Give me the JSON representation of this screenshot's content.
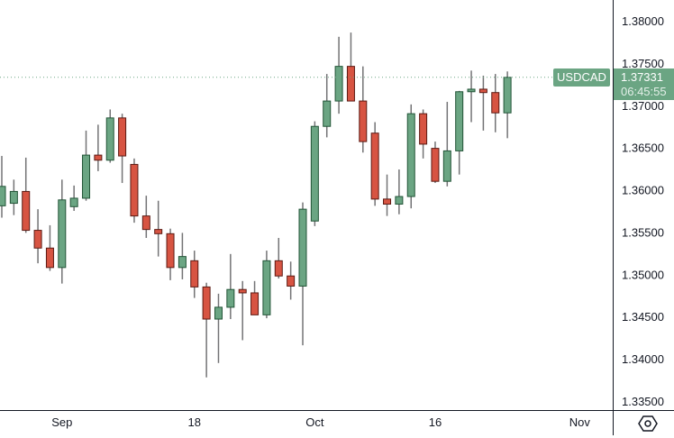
{
  "symbol": "USDCAD",
  "last_price": "1.37331",
  "countdown": "06:45:55",
  "colors": {
    "up_body": "#6ba583",
    "up_border": "#225437",
    "down_body": "#d75442",
    "down_border": "#5b1a13",
    "wick": "#737375",
    "price_line": "#6ba583"
  },
  "settings_icon": "settings-hexagon-icon",
  "chart_data": {
    "type": "candlestick",
    "ylim": [
      1.335,
      1.38
    ],
    "grid": false,
    "y_ticks": [
      "1.38000",
      "1.37500",
      "1.37000",
      "1.36500",
      "1.36000",
      "1.35500",
      "1.35000",
      "1.34500",
      "1.34000",
      "1.33500"
    ],
    "x_ticks": [
      {
        "label": "Sep",
        "date": "2023-09-01"
      },
      {
        "label": "18",
        "date": "2023-09-18"
      },
      {
        "label": "Oct",
        "date": "2023-10-02"
      },
      {
        "label": "16",
        "date": "2023-10-16"
      },
      {
        "label": "Nov",
        "date": "2023-11-01"
      }
    ],
    "start_date": "2023-08-25",
    "ohlc": [
      [
        1.3581,
        1.364,
        1.3567,
        1.3604
      ],
      [
        1.3584,
        1.3612,
        1.357,
        1.3598
      ],
      [
        1.3598,
        1.3638,
        1.3549,
        1.3552
      ],
      [
        1.3552,
        1.3577,
        1.3513,
        1.3531
      ],
      [
        1.3531,
        1.3558,
        1.3504,
        1.3508
      ],
      [
        1.3508,
        1.3612,
        1.3489,
        1.3588
      ],
      [
        1.358,
        1.3605,
        1.3575,
        1.359
      ],
      [
        1.359,
        1.367,
        1.3587,
        1.3641
      ],
      [
        1.3641,
        1.3677,
        1.3622,
        1.3635
      ],
      [
        1.3635,
        1.3695,
        1.3632,
        1.3685
      ],
      [
        1.3685,
        1.369,
        1.3608,
        1.364
      ],
      [
        1.363,
        1.3637,
        1.3561,
        1.3569
      ],
      [
        1.3569,
        1.3593,
        1.3543,
        1.3553
      ],
      [
        1.3553,
        1.3587,
        1.3521,
        1.3548
      ],
      [
        1.3548,
        1.3554,
        1.3493,
        1.3508
      ],
      [
        1.3508,
        1.3549,
        1.3494,
        1.3521
      ],
      [
        1.3516,
        1.3528,
        1.3472,
        1.3485
      ],
      [
        1.3485,
        1.349,
        1.3378,
        1.3447
      ],
      [
        1.3447,
        1.3477,
        1.3395,
        1.3461
      ],
      [
        1.3461,
        1.3524,
        1.3447,
        1.3482
      ],
      [
        1.3482,
        1.3492,
        1.3422,
        1.3478
      ],
      [
        1.3478,
        1.3492,
        1.3452,
        1.3452
      ],
      [
        1.3452,
        1.3528,
        1.3448,
        1.3516
      ],
      [
        1.3516,
        1.3543,
        1.3495,
        1.3498
      ],
      [
        1.3498,
        1.3515,
        1.347,
        1.3486
      ],
      [
        1.3486,
        1.3585,
        1.3416,
        1.3577
      ],
      [
        1.3563,
        1.3681,
        1.3557,
        1.3675
      ],
      [
        1.3675,
        1.3737,
        1.3662,
        1.3705
      ],
      [
        1.3705,
        1.3781,
        1.369,
        1.3746
      ],
      [
        1.3746,
        1.3786,
        1.3705,
        1.3705
      ],
      [
        1.3705,
        1.3746,
        1.3644,
        1.3657
      ],
      [
        1.3667,
        1.368,
        1.3581,
        1.3589
      ],
      [
        1.3589,
        1.3618,
        1.3569,
        1.3583
      ],
      [
        1.3583,
        1.3624,
        1.3571,
        1.3592
      ],
      [
        1.3592,
        1.3701,
        1.3578,
        1.369
      ],
      [
        1.369,
        1.3695,
        1.3637,
        1.3654
      ],
      [
        1.3649,
        1.3657,
        1.3608,
        1.361
      ],
      [
        1.361,
        1.3704,
        1.3604,
        1.3646
      ],
      [
        1.3646,
        1.3717,
        1.3618,
        1.3716
      ],
      [
        1.3716,
        1.3741,
        1.368,
        1.3719
      ],
      [
        1.3719,
        1.3735,
        1.367,
        1.3715
      ],
      [
        1.3715,
        1.3737,
        1.3668,
        1.3691
      ],
      [
        1.3691,
        1.374,
        1.3661,
        1.3733
      ]
    ],
    "last": 1.37331
  }
}
